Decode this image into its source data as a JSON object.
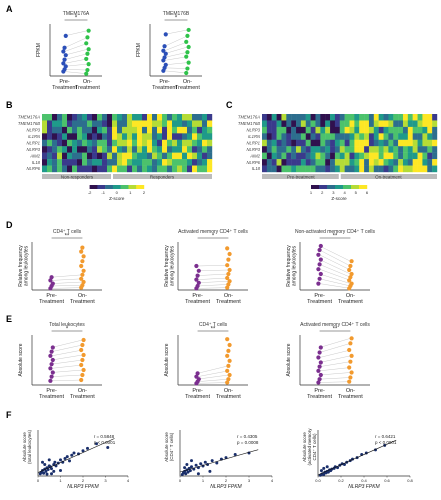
{
  "panel_labels": {
    "A": "A",
    "B": "B",
    "C": "C",
    "D": "D",
    "E": "E",
    "F": "F"
  },
  "colors": {
    "blue": "#2b4fb8",
    "green": "#2fc24a",
    "purple": "#7b2f8f",
    "orange": "#f29a2e",
    "navy": "#1a2f6b",
    "line": "#bbbbbb",
    "axis": "#333333",
    "heat": [
      "#30114e",
      "#3a3a8c",
      "#2d6e8e",
      "#1f9a8a",
      "#4cc26c",
      "#b5dc36",
      "#fde725"
    ],
    "legend_bar": "#bcbcbc"
  },
  "chart_data": [
    {
      "id": "A1",
      "type": "scatter",
      "panel": "A",
      "title": "TMEM176A",
      "ylabel": "FPKM",
      "categories": [
        "Pre-\nTreatment",
        "On-\nTreatment"
      ],
      "ylim": [
        0,
        7
      ],
      "significance": "*",
      "series": [
        {
          "values": [
            0.6,
            0.9,
            1.3,
            1.7,
            2.2,
            2.8,
            3.3,
            3.8,
            5.4
          ],
          "color": "blue"
        },
        {
          "values": [
            0.3,
            0.8,
            1.6,
            2.3,
            3.0,
            3.6,
            4.4,
            5.2,
            6.1
          ],
          "color": "green"
        }
      ]
    },
    {
      "id": "A2",
      "type": "scatter",
      "panel": "A",
      "title": "TMEM176B",
      "ylabel": "FPKM",
      "categories": [
        "Pre-\nTreatment",
        "On-\nTreatment"
      ],
      "ylim": [
        0,
        7
      ],
      "significance": "*",
      "series": [
        {
          "values": [
            0.7,
            1.1,
            1.5,
            2.1,
            2.5,
            3.0,
            3.4,
            4.0,
            5.6
          ],
          "color": "blue"
        },
        {
          "values": [
            0.4,
            1.0,
            1.8,
            2.6,
            3.2,
            3.9,
            4.6,
            5.4,
            6.2
          ],
          "color": "green"
        }
      ]
    },
    {
      "id": "B",
      "type": "heatmap",
      "panel": "B",
      "row_labels": [
        "TMEM176A",
        "TMEM176B",
        "NLRP3",
        "IL1RN",
        "NLRP1",
        "NLRP3",
        "AIM2",
        "IL18",
        "NLRP6"
      ],
      "group_labels": [
        "Non-responders",
        "Responders"
      ],
      "group_split": 0.4,
      "colorbar_ticks": [
        "-2",
        "-1",
        "0",
        "1",
        "2"
      ],
      "colorbar_label": "Z-score"
    },
    {
      "id": "C",
      "type": "heatmap",
      "panel": "C",
      "row_labels": [
        "TMEM176A",
        "TMEM176B",
        "NLRP3",
        "IL1RN",
        "NLRP1",
        "NLRP3",
        "AIM2",
        "NLRP6",
        "IL18"
      ],
      "group_labels": [
        "Pre-treatment",
        "On-treatment"
      ],
      "group_split": 0.45,
      "colorbar_ticks": [
        "1",
        "2",
        "3",
        "4",
        "5",
        "6"
      ],
      "colorbar_label": "Z-score"
    },
    {
      "id": "D1",
      "type": "scatter",
      "panel": "D",
      "title": "CD4⁺ T cells",
      "ylabel": "Relative frequency\namong leukocytes",
      "categories": [
        "Pre-\nTreatment",
        "On-\nTreatment"
      ],
      "ylim": [
        0,
        0.6
      ],
      "significance": "**",
      "series": [
        {
          "values": [
            0.02,
            0.05,
            0.08,
            0.12,
            0.16
          ],
          "color": "purple"
        },
        {
          "values": [
            0.03,
            0.06,
            0.1,
            0.14,
            0.19,
            0.24,
            0.3,
            0.36,
            0.42,
            0.48,
            0.53
          ],
          "color": "orange"
        }
      ]
    },
    {
      "id": "D2",
      "type": "scatter",
      "panel": "D",
      "title": "Activated memory CD4⁺ T cells",
      "ylabel": "Relative frequency\namong leukocytes",
      "categories": [
        "Pre-\nTreatment",
        "On-\nTreatment"
      ],
      "ylim": [
        0,
        0.6
      ],
      "significance": "*",
      "series": [
        {
          "values": [
            0.02,
            0.05,
            0.09,
            0.13,
            0.18,
            0.24,
            0.3
          ],
          "color": "purple"
        },
        {
          "values": [
            0.03,
            0.07,
            0.11,
            0.15,
            0.2,
            0.25,
            0.31,
            0.38,
            0.45,
            0.52
          ],
          "color": "orange"
        }
      ]
    },
    {
      "id": "D3",
      "type": "scatter",
      "panel": "D",
      "title": "Non-activated memory CD4⁺ T cells",
      "ylabel": "Relative frequency\namong leukocytes",
      "categories": [
        "Pre-\nTreatment",
        "On-\nTreatment"
      ],
      "ylim": [
        0,
        0.6
      ],
      "significance": "**",
      "series": [
        {
          "values": [
            0.08,
            0.14,
            0.2,
            0.26,
            0.32,
            0.38,
            0.44,
            0.5,
            0.55
          ],
          "color": "purple"
        },
        {
          "values": [
            0.02,
            0.05,
            0.08,
            0.12,
            0.16,
            0.2,
            0.25,
            0.3,
            0.36
          ],
          "color": "orange"
        }
      ]
    },
    {
      "id": "E1",
      "type": "scatter",
      "panel": "E",
      "title": "Total leukocytes",
      "ylabel": "Absolute score",
      "categories": [
        "Pre-\nTreatment",
        "On-\nTreatment"
      ],
      "ylim": [
        0,
        0.6
      ],
      "significance": "*",
      "series": [
        {
          "values": [
            0.05,
            0.1,
            0.15,
            0.2,
            0.25,
            0.3,
            0.35,
            0.4,
            0.45
          ],
          "color": "purple"
        },
        {
          "values": [
            0.06,
            0.12,
            0.18,
            0.24,
            0.3,
            0.36,
            0.42,
            0.48,
            0.54
          ],
          "color": "orange"
        }
      ]
    },
    {
      "id": "E2",
      "type": "scatter",
      "panel": "E",
      "title": "CD4⁺ T cells",
      "ylabel": "Absolute score",
      "categories": [
        "Pre-\nTreatment",
        "On-\nTreatment"
      ],
      "ylim": [
        0,
        0.6
      ],
      "significance": "**",
      "series": [
        {
          "values": [
            0.02,
            0.04,
            0.07,
            0.1,
            0.14
          ],
          "color": "purple"
        },
        {
          "values": [
            0.03,
            0.07,
            0.12,
            0.17,
            0.23,
            0.29,
            0.35,
            0.41,
            0.48,
            0.55
          ],
          "color": "orange"
        }
      ]
    },
    {
      "id": "E3",
      "type": "scatter",
      "panel": "E",
      "title": "Activated memory CD4⁺ T cells",
      "ylabel": "Absolute score",
      "categories": [
        "Pre-\nTreatment",
        "On-\nTreatment"
      ],
      "ylim": [
        0,
        0.6
      ],
      "significance": "**",
      "series": [
        {
          "values": [
            0.03,
            0.07,
            0.12,
            0.17,
            0.22,
            0.27,
            0.33,
            0.39,
            0.45
          ],
          "color": "purple"
        },
        {
          "values": [
            0.04,
            0.09,
            0.15,
            0.21,
            0.28,
            0.35,
            0.42,
            0.5,
            0.56
          ],
          "color": "orange"
        }
      ]
    },
    {
      "id": "F1",
      "type": "scatter",
      "panel": "F",
      "xlabel": "NLRP3 FPKM",
      "ylabel": "Absolute score\n(total leukocytes)",
      "xlim": [
        0,
        4
      ],
      "ylim": [
        0,
        1
      ],
      "xticks": [
        "0",
        "1",
        "2",
        "3",
        "4"
      ],
      "stats": [
        "r = 0.5848",
        "p < 0.0001"
      ],
      "points": [
        [
          0.1,
          0.05
        ],
        [
          0.15,
          0.08
        ],
        [
          0.2,
          0.12
        ],
        [
          0.25,
          0.06
        ],
        [
          0.3,
          0.15
        ],
        [
          0.35,
          0.1
        ],
        [
          0.4,
          0.18
        ],
        [
          0.45,
          0.14
        ],
        [
          0.5,
          0.22
        ],
        [
          0.55,
          0.2
        ],
        [
          0.6,
          0.16
        ],
        [
          0.7,
          0.25
        ],
        [
          0.75,
          0.3
        ],
        [
          0.8,
          0.22
        ],
        [
          0.9,
          0.28
        ],
        [
          1.0,
          0.35
        ],
        [
          1.1,
          0.3
        ],
        [
          1.2,
          0.38
        ],
        [
          1.3,
          0.42
        ],
        [
          1.4,
          0.33
        ],
        [
          1.5,
          0.45
        ],
        [
          1.6,
          0.5
        ],
        [
          1.8,
          0.48
        ],
        [
          2.0,
          0.55
        ],
        [
          2.2,
          0.6
        ],
        [
          0.2,
          0.3
        ],
        [
          0.3,
          0.25
        ],
        [
          0.5,
          0.35
        ],
        [
          0.6,
          0.05
        ],
        [
          0.4,
          0.04
        ],
        [
          0.7,
          0.1
        ],
        [
          1.0,
          0.12
        ],
        [
          2.6,
          0.7
        ],
        [
          3.1,
          0.62
        ]
      ]
    },
    {
      "id": "F2",
      "type": "scatter",
      "panel": "F",
      "xlabel": "NLRP3 FPKM",
      "ylabel": "Absolute score\n(CD4⁺ T cells)",
      "xlim": [
        0,
        4
      ],
      "ylim": [
        0,
        0.6
      ],
      "xticks": [
        "0",
        "1",
        "2",
        "3",
        "4"
      ],
      "stats": [
        "r = 0.4305",
        "p = 0.0008"
      ],
      "points": [
        [
          0.1,
          0.02
        ],
        [
          0.15,
          0.04
        ],
        [
          0.2,
          0.06
        ],
        [
          0.25,
          0.03
        ],
        [
          0.3,
          0.08
        ],
        [
          0.35,
          0.05
        ],
        [
          0.4,
          0.1
        ],
        [
          0.45,
          0.07
        ],
        [
          0.5,
          0.12
        ],
        [
          0.6,
          0.09
        ],
        [
          0.7,
          0.14
        ],
        [
          0.8,
          0.11
        ],
        [
          0.9,
          0.16
        ],
        [
          1.0,
          0.13
        ],
        [
          1.1,
          0.18
        ],
        [
          1.2,
          0.15
        ],
        [
          1.4,
          0.2
        ],
        [
          1.6,
          0.17
        ],
        [
          1.8,
          0.22
        ],
        [
          2.0,
          0.24
        ],
        [
          0.3,
          0.15
        ],
        [
          0.5,
          0.2
        ],
        [
          0.2,
          0.11
        ],
        [
          2.4,
          0.28
        ],
        [
          3.0,
          0.3
        ],
        [
          0.8,
          0.03
        ],
        [
          1.3,
          0.06
        ]
      ]
    },
    {
      "id": "F3",
      "type": "scatter",
      "panel": "F",
      "xlabel": "NLRP3 FPKM",
      "ylabel": "Absolute score\n(activated memory\nCD4⁺ T cells)",
      "xlim": [
        0,
        0.8
      ],
      "ylim": [
        0,
        0.6
      ],
      "xticks": [
        "0.0",
        "0.2",
        "0.4",
        "0.6",
        "0.8"
      ],
      "stats": [
        "r = 0.6421",
        "p < 0.0001"
      ],
      "points": [
        [
          0.02,
          0.01
        ],
        [
          0.03,
          0.02
        ],
        [
          0.04,
          0.03
        ],
        [
          0.05,
          0.02
        ],
        [
          0.06,
          0.05
        ],
        [
          0.07,
          0.04
        ],
        [
          0.08,
          0.06
        ],
        [
          0.09,
          0.05
        ],
        [
          0.1,
          0.08
        ],
        [
          0.11,
          0.07
        ],
        [
          0.12,
          0.09
        ],
        [
          0.14,
          0.1
        ],
        [
          0.15,
          0.12
        ],
        [
          0.17,
          0.11
        ],
        [
          0.19,
          0.14
        ],
        [
          0.21,
          0.16
        ],
        [
          0.23,
          0.15
        ],
        [
          0.25,
          0.18
        ],
        [
          0.28,
          0.2
        ],
        [
          0.3,
          0.22
        ],
        [
          0.34,
          0.24
        ],
        [
          0.38,
          0.28
        ],
        [
          0.42,
          0.3
        ],
        [
          0.5,
          0.34
        ],
        [
          0.58,
          0.4
        ],
        [
          0.05,
          0.1
        ],
        [
          0.08,
          0.12
        ],
        [
          0.03,
          0.07
        ]
      ]
    }
  ]
}
